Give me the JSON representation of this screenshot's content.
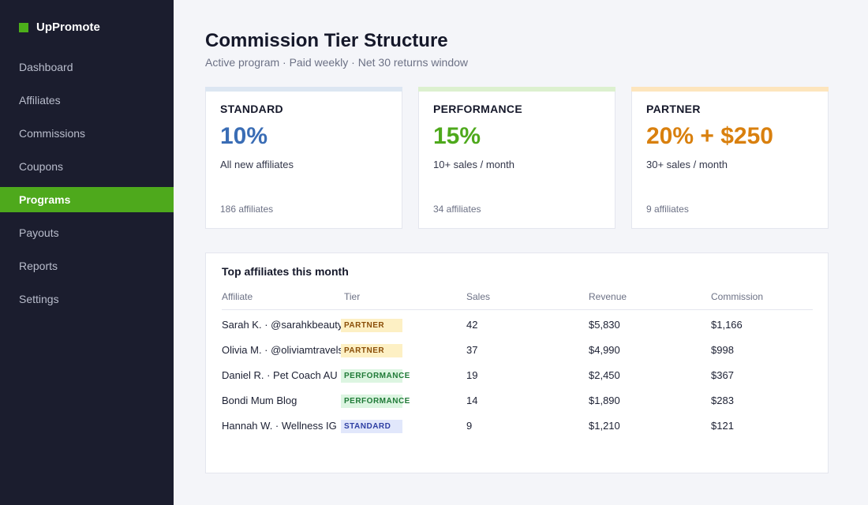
{
  "brand": {
    "name": "UpPromote",
    "accent": "#4caf1a"
  },
  "nav": [
    {
      "label": "Dashboard",
      "active": false
    },
    {
      "label": "Affiliates",
      "active": false
    },
    {
      "label": "Commissions",
      "active": false
    },
    {
      "label": "Coupons",
      "active": false
    },
    {
      "label": "Programs",
      "active": true
    },
    {
      "label": "Payouts",
      "active": false
    },
    {
      "label": "Reports",
      "active": false
    },
    {
      "label": "Settings",
      "active": false
    }
  ],
  "header": {
    "title": "Commission Tier Structure",
    "subtitle": "Active program · Paid weekly · Net 30 returns window"
  },
  "tiers": [
    {
      "name": "STANDARD",
      "rate": "10%",
      "requirement": "All new affiliates",
      "count": "186 affiliates",
      "color": "#3a6db5",
      "bar_color": "#dce6f2"
    },
    {
      "name": "PERFORMANCE",
      "rate": "15%",
      "requirement": "10+ sales / month",
      "count": "34 affiliates",
      "color": "#4ea91c",
      "bar_color": "#dcf0cf"
    },
    {
      "name": "PARTNER",
      "rate": "20% + $250",
      "requirement": "30+ sales / month",
      "count": "9 affiliates",
      "color": "#d9800e",
      "bar_color": "#fde5bd"
    }
  ],
  "top_affiliates": {
    "title": "Top affiliates this month",
    "columns": {
      "affiliate": "Affiliate",
      "tier": "Tier",
      "sales": "Sales",
      "revenue": "Revenue",
      "commission": "Commission"
    },
    "rows": [
      {
        "affiliate": "Sarah K. · @sarahkbeauty",
        "tier": "PARTNER",
        "tier_class": "partner",
        "sales": "42",
        "revenue": "$5,830",
        "commission": "$1,166"
      },
      {
        "affiliate": "Olivia M. · @oliviamtravels",
        "tier": "PARTNER",
        "tier_class": "partner",
        "sales": "37",
        "revenue": "$4,990",
        "commission": "$998"
      },
      {
        "affiliate": "Daniel R. · Pet Coach AU",
        "tier": "PERFORMANCE",
        "tier_class": "performance",
        "sales": "19",
        "revenue": "$2,450",
        "commission": "$367"
      },
      {
        "affiliate": "Bondi Mum Blog",
        "tier": "PERFORMANCE",
        "tier_class": "performance",
        "sales": "14",
        "revenue": "$1,890",
        "commission": "$283"
      },
      {
        "affiliate": "Hannah W. · Wellness IG",
        "tier": "STANDARD",
        "tier_class": "standard",
        "sales": "9",
        "revenue": "$1,210",
        "commission": "$121"
      }
    ]
  }
}
